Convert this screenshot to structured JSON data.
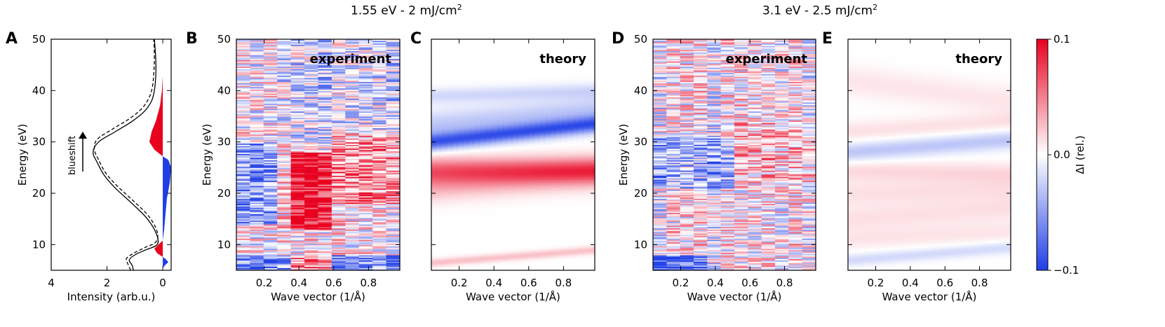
{
  "headers": {
    "left": {
      "main": "1.55 eV - 2 mJ/cm",
      "sup": "2"
    },
    "right": {
      "main": "3.1 eV -  2.5 mJ/cm",
      "sup": "2"
    }
  },
  "colors": {
    "positive": "#e8001f",
    "negative": "#1f3ee6",
    "zero": "#ffffff"
  },
  "chart_data": [
    {
      "panel": "A",
      "type": "line",
      "xlabel": "Intensity (arb.u.)",
      "ylabel": "Energy (eV)",
      "xlim": [
        4,
        -0.3
      ],
      "ylim": [
        5,
        50
      ],
      "xticks": [
        4,
        2,
        0
      ],
      "yticks": [
        10,
        20,
        30,
        40,
        50
      ],
      "annotation": "blueshift",
      "series": [
        {
          "style": "solid",
          "points": [
            [
              1.05,
              5
            ],
            [
              1.1,
              6
            ],
            [
              1.2,
              7
            ],
            [
              1.0,
              8
            ],
            [
              0.6,
              9
            ],
            [
              0.2,
              10
            ],
            [
              0.22,
              12
            ],
            [
              0.55,
              15
            ],
            [
              1.1,
              18
            ],
            [
              1.7,
              21
            ],
            [
              2.1,
              23.5
            ],
            [
              2.35,
              26
            ],
            [
              2.5,
              28
            ],
            [
              2.3,
              30
            ],
            [
              1.7,
              32
            ],
            [
              1.1,
              34
            ],
            [
              0.65,
              36
            ],
            [
              0.4,
              38
            ],
            [
              0.3,
              40
            ],
            [
              0.25,
              43
            ],
            [
              0.25,
              46
            ],
            [
              0.3,
              50
            ]
          ]
        },
        {
          "style": "dashed",
          "points": [
            [
              1.15,
              5
            ],
            [
              1.25,
              6.2
            ],
            [
              1.3,
              7.3
            ],
            [
              1.05,
              8.3
            ],
            [
              0.65,
              9.4
            ],
            [
              0.25,
              10.5
            ],
            [
              0.2,
              12.5
            ],
            [
              0.5,
              15.5
            ],
            [
              1.05,
              18.5
            ],
            [
              1.65,
              21.5
            ],
            [
              2.05,
              24
            ],
            [
              2.3,
              26.5
            ],
            [
              2.45,
              28.5
            ],
            [
              2.35,
              30.5
            ],
            [
              1.8,
              32.5
            ],
            [
              1.2,
              34.5
            ],
            [
              0.75,
              36.5
            ],
            [
              0.5,
              38.5
            ],
            [
              0.38,
              40.5
            ],
            [
              0.32,
              43.5
            ],
            [
              0.3,
              46.5
            ],
            [
              0.32,
              50
            ]
          ]
        },
        {
          "style": "fill",
          "sign": "negative",
          "points": [
            [
              0.0,
              5.5
            ],
            [
              -0.12,
              6.2
            ],
            [
              -0.2,
              6.6
            ],
            [
              -0.1,
              7.2
            ],
            [
              0.0,
              7.6
            ]
          ]
        },
        {
          "style": "fill",
          "sign": "positive",
          "points": [
            [
              0.0,
              7.6
            ],
            [
              0.2,
              8.3
            ],
            [
              0.3,
              9.2
            ],
            [
              0.12,
              10.2
            ],
            [
              0.0,
              10.8
            ]
          ]
        },
        {
          "style": "fill",
          "sign": "negative",
          "points": [
            [
              0.0,
              10.8
            ],
            [
              -0.05,
              13
            ],
            [
              -0.1,
              16
            ],
            [
              -0.15,
              19
            ],
            [
              -0.25,
              22
            ],
            [
              -0.3,
              25
            ],
            [
              -0.2,
              26.5
            ],
            [
              0.0,
              27.2
            ]
          ]
        },
        {
          "style": "fill",
          "sign": "positive",
          "points": [
            [
              0.0,
              27.2
            ],
            [
              0.3,
              28.5
            ],
            [
              0.48,
              30
            ],
            [
              0.4,
              32
            ],
            [
              0.25,
              34
            ],
            [
              0.1,
              37
            ],
            [
              0.03,
              40
            ],
            [
              0.0,
              43
            ]
          ]
        }
      ]
    },
    {
      "panel": "B",
      "type": "heatmap",
      "label": "experiment",
      "xlabel": "Wave vector (1/Å)",
      "ylabel": "Energy (eV)",
      "xlim": [
        0.04,
        0.98
      ],
      "ylim": [
        5,
        50
      ],
      "xticks": [
        0.2,
        0.4,
        0.6,
        0.8
      ],
      "yticks": [
        10,
        20,
        30,
        40,
        50
      ],
      "zlim": [
        -0.1,
        0.1
      ],
      "features": [
        {
          "kmin": 0.04,
          "kmax": 0.96,
          "Emin": 5,
          "Emax": 8,
          "value": -0.06,
          "note": "low-energy blue"
        },
        {
          "kmin": 0.32,
          "kmax": 0.6,
          "Emin": 5,
          "Emax": 8,
          "value": 0.1
        },
        {
          "kmin": 0.32,
          "kmax": 0.62,
          "Emin": 13,
          "Emax": 28,
          "value": 0.1
        },
        {
          "kmin": 0.6,
          "kmax": 0.96,
          "Emin": 18,
          "Emax": 32,
          "value": 0.04
        },
        {
          "kmin": 0.04,
          "kmax": 0.3,
          "Emin": 14,
          "Emax": 30,
          "value": -0.05
        },
        {
          "kmin": 0.3,
          "kmax": 0.96,
          "Emin": 30,
          "Emax": 50,
          "value": -0.02
        }
      ]
    },
    {
      "panel": "C",
      "type": "heatmap",
      "label": "theory",
      "xlabel": "Wave vector (1/Å)",
      "ylabel": "",
      "xlim": [
        0.04,
        0.98
      ],
      "ylim": [
        5,
        50
      ],
      "xticks": [
        0.2,
        0.4,
        0.6,
        0.8
      ],
      "yticks": [
        10,
        20,
        30,
        40,
        50
      ],
      "zlim": [
        -0.1,
        0.1
      ],
      "bands": [
        {
          "E0": 30.0,
          "E1": 33.5,
          "width": 1.6,
          "value": -0.08
        },
        {
          "E0": 33.0,
          "E1": 36.0,
          "width": 3.0,
          "value": -0.03
        },
        {
          "E0": 24.5,
          "E1": 24.5,
          "width": 2.5,
          "value": 0.06
        },
        {
          "E0": 21.5,
          "E1": 24.0,
          "width": 3.0,
          "value": 0.03
        },
        {
          "E0": 39.0,
          "E1": 40.0,
          "width": 1.5,
          "value": -0.02
        },
        {
          "E0": 6.5,
          "E1": 9.0,
          "width": 0.8,
          "value": 0.025
        }
      ]
    },
    {
      "panel": "D",
      "type": "heatmap",
      "label": "experiment",
      "xlabel": "Wave vector (1/Å)",
      "ylabel": "Energy (eV)",
      "xlim": [
        0.04,
        0.98
      ],
      "ylim": [
        5,
        50
      ],
      "xticks": [
        0.2,
        0.4,
        0.6,
        0.8
      ],
      "yticks": [
        10,
        20,
        30,
        40,
        50
      ],
      "zlim": [
        -0.1,
        0.1
      ],
      "features": [
        {
          "kmin": 0.04,
          "kmax": 0.36,
          "Emin": 5,
          "Emax": 8,
          "value": -0.09
        },
        {
          "kmin": 0.04,
          "kmax": 0.5,
          "Emin": 21,
          "Emax": 31,
          "value": -0.04
        },
        {
          "kmin": 0.5,
          "kmax": 0.96,
          "Emin": 22,
          "Emax": 34,
          "value": 0.02
        }
      ]
    },
    {
      "panel": "E",
      "type": "heatmap",
      "label": "theory",
      "xlabel": "Wave vector (1/Å)",
      "ylabel": "",
      "xlim": [
        0.04,
        0.98
      ],
      "ylim": [
        5,
        50
      ],
      "xticks": [
        0.2,
        0.4,
        0.6,
        0.8
      ],
      "yticks": [
        10,
        20,
        30,
        40,
        50
      ],
      "zlim": [
        -0.1,
        0.1
      ],
      "bands": [
        {
          "E0": 28.0,
          "E1": 30.5,
          "width": 1.8,
          "value": -0.03
        },
        {
          "E0": 32.0,
          "E1": 34.0,
          "width": 2.0,
          "value": 0.012
        },
        {
          "E0": 24.5,
          "E1": 24.0,
          "width": 2.0,
          "value": 0.015
        },
        {
          "E0": 20.0,
          "E1": 21.0,
          "width": 2.5,
          "value": 0.012
        },
        {
          "E0": 15.0,
          "E1": 17.0,
          "width": 2.5,
          "value": 0.012
        },
        {
          "E0": 11.0,
          "E1": 12.5,
          "width": 2.0,
          "value": 0.01
        },
        {
          "E0": 7.0,
          "E1": 9.5,
          "width": 1.2,
          "value": -0.02
        },
        {
          "E0": 42.0,
          "E1": 38.0,
          "width": 3.0,
          "value": 0.01
        }
      ]
    }
  ],
  "colorbar": {
    "label": "ΔI (rel.)",
    "ticks": [
      {
        "value": 0.1,
        "label": "0.1"
      },
      {
        "value": 0.0,
        "label": "0.0"
      },
      {
        "value": -0.1,
        "label": "−0.1"
      }
    ]
  }
}
